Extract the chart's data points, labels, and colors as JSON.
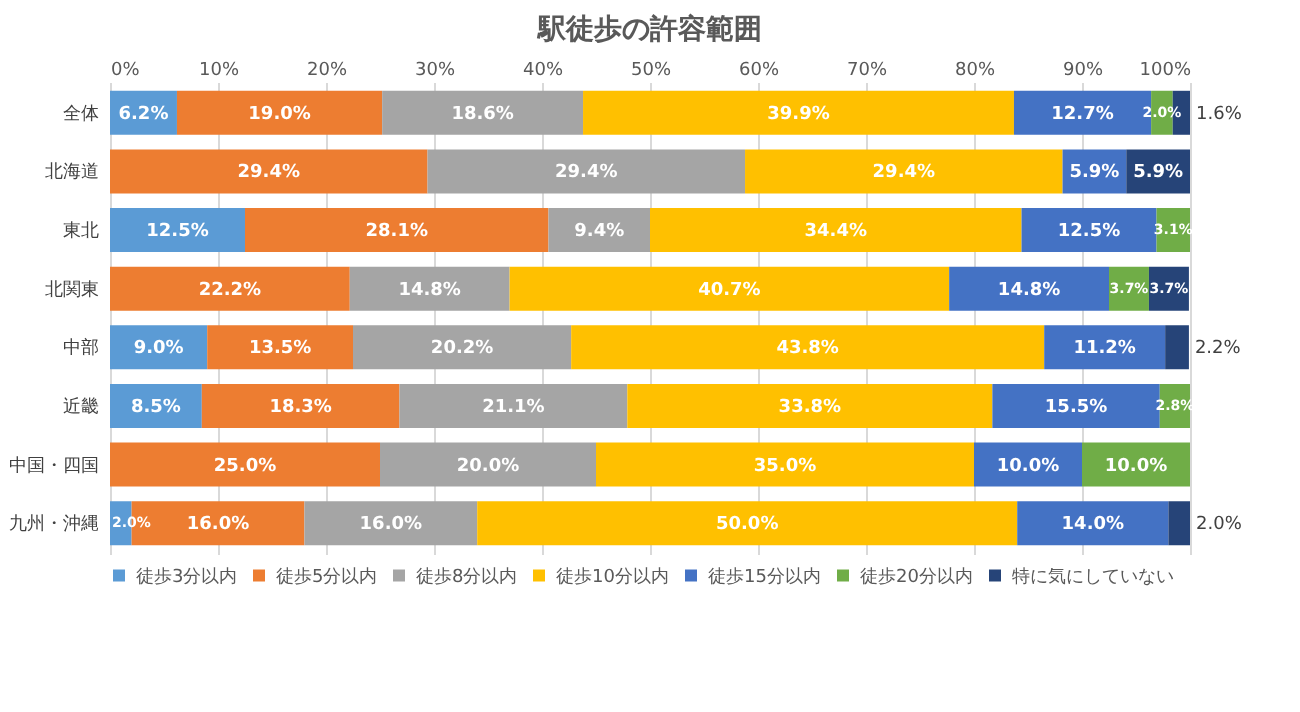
{
  "chart_data": {
    "type": "bar",
    "orientation": "horizontal",
    "stacked": true,
    "title": "駅徒歩の許容範囲",
    "categories": [
      "全体",
      "北海道",
      "東北",
      "北関東",
      "中部",
      "近畿",
      "中国・四国",
      "九州・沖縄"
    ],
    "series": [
      {
        "name": "徒歩3分以内",
        "color": "#5b9bd5",
        "values": [
          6.2,
          0,
          12.5,
          0,
          9.0,
          8.5,
          0,
          2.0
        ],
        "value_labels": [
          "6.2%",
          null,
          "12.5%",
          null,
          "9.0%",
          "8.5%",
          null,
          "2.0%"
        ]
      },
      {
        "name": "徒歩5分以内",
        "color": "#ed7d31",
        "values": [
          19.0,
          29.4,
          28.1,
          22.2,
          13.5,
          18.3,
          25.0,
          16.0
        ],
        "value_labels": [
          "19.0%",
          "29.4%",
          "28.1%",
          "22.2%",
          "13.5%",
          "18.3%",
          "25.0%",
          "16.0%"
        ]
      },
      {
        "name": "徒歩8分以内",
        "color": "#a5a5a5",
        "values": [
          18.6,
          29.4,
          9.4,
          14.8,
          20.2,
          21.1,
          20.0,
          16.0
        ],
        "value_labels": [
          "18.6%",
          "29.4%",
          "9.4%",
          "14.8%",
          "20.2%",
          "21.1%",
          "20.0%",
          "16.0%"
        ]
      },
      {
        "name": "徒歩10分以内",
        "color": "#ffc000",
        "values": [
          39.9,
          29.4,
          34.4,
          40.7,
          43.8,
          33.8,
          35.0,
          50.0
        ],
        "value_labels": [
          "39.9%",
          "29.4%",
          "34.4%",
          "40.7%",
          "43.8%",
          "33.8%",
          "35.0%",
          "50.0%"
        ]
      },
      {
        "name": "徒歩15分以内",
        "color": "#4472c4",
        "values": [
          12.7,
          5.9,
          12.5,
          14.8,
          11.2,
          15.5,
          10.0,
          14.0
        ],
        "value_labels": [
          "12.7%",
          "5.9%",
          "12.5%",
          "14.8%",
          "11.2%",
          "15.5%",
          "10.0%",
          "14.0%"
        ]
      },
      {
        "name": "徒歩20分以内",
        "color": "#70ad47",
        "values": [
          2.0,
          0,
          3.1,
          3.7,
          0,
          2.8,
          10.0,
          0
        ],
        "value_labels": [
          "2.0%",
          null,
          "3.1%",
          "3.7%",
          null,
          "2.8%",
          "10.0%",
          null
        ]
      },
      {
        "name": "特に気にしていない",
        "color": "#264478",
        "values": [
          1.6,
          5.9,
          0,
          3.7,
          2.2,
          0,
          0,
          2.0
        ],
        "value_labels": [
          "1.6%",
          "5.9%",
          null,
          "3.7%",
          "2.2%",
          null,
          null,
          "2.0%"
        ]
      }
    ],
    "xlim": [
      0,
      100
    ],
    "xticks": [
      {
        "value": 0,
        "label": "0%"
      },
      {
        "value": 10,
        "label": "10%"
      },
      {
        "value": 20,
        "label": "20%"
      },
      {
        "value": 30,
        "label": "30%"
      },
      {
        "value": 40,
        "label": "40%"
      },
      {
        "value": 50,
        "label": "50%"
      },
      {
        "value": 60,
        "label": "60%"
      },
      {
        "value": 70,
        "label": "70%"
      },
      {
        "value": 80,
        "label": "80%"
      },
      {
        "value": 90,
        "label": "90%"
      },
      {
        "value": 100,
        "label": "100%"
      }
    ],
    "grid": "x",
    "legend": "bottom"
  }
}
